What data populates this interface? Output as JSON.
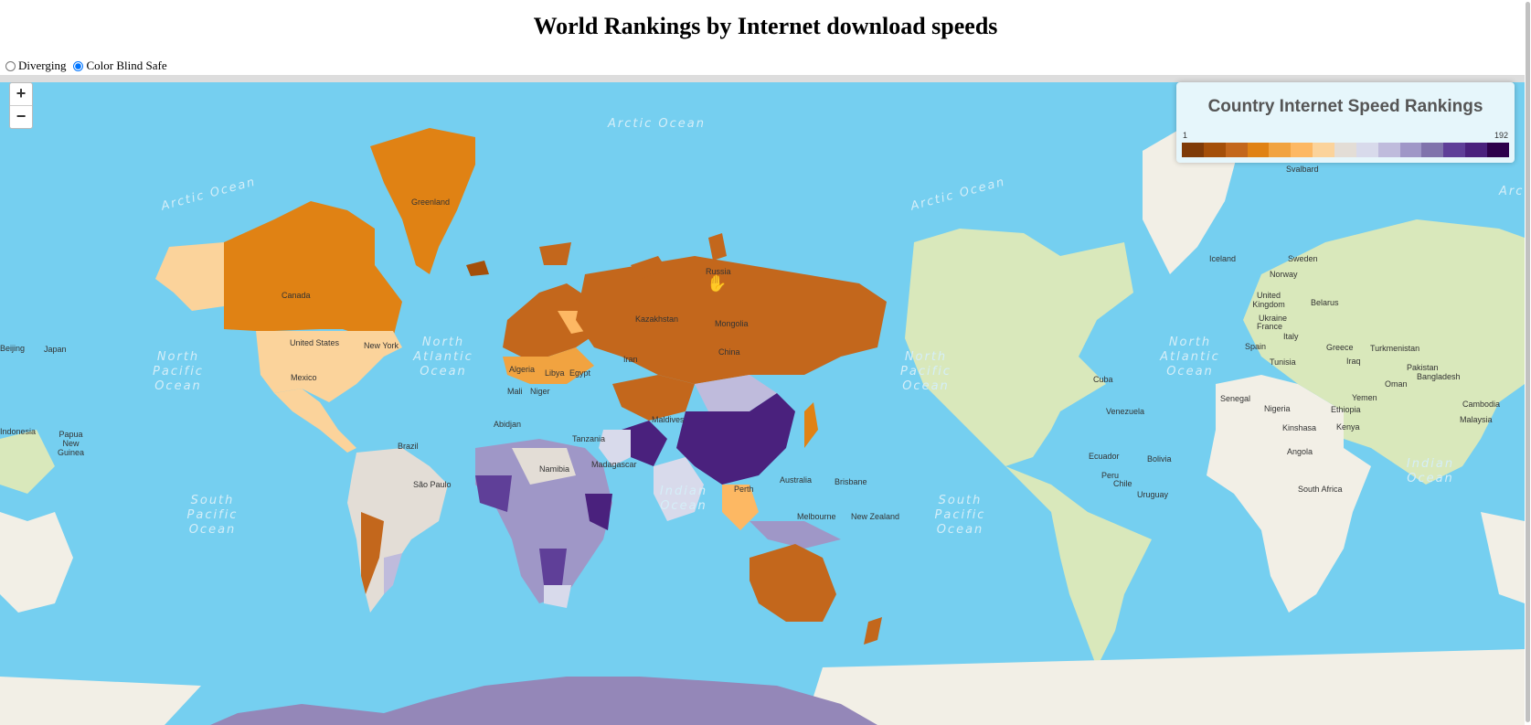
{
  "page": {
    "title": "World Rankings by Internet download speeds"
  },
  "color_mode": {
    "options": [
      {
        "label": "Diverging",
        "selected": false
      },
      {
        "label": "Color Blind Safe",
        "selected": true
      }
    ]
  },
  "zoom": {
    "in_label": "+",
    "out_label": "−"
  },
  "legend": {
    "title": "Country Internet Speed Rankings",
    "min_label": "1",
    "max_label": "192",
    "colors": [
      "#7f3b08",
      "#a44f09",
      "#c3671c",
      "#e08214",
      "#f1a340",
      "#fdb863",
      "#fbd39b",
      "#e3ddd6",
      "#d8daeb",
      "#bfbbdc",
      "#9f97c7",
      "#8073ac",
      "#5f3f98",
      "#4a217d",
      "#2d004b"
    ]
  },
  "colors": {
    "ocean": "#75cff0",
    "land_base": "#f2efe6",
    "land_green": "#d9e8bb",
    "antarctica": "#9487b8"
  },
  "map_labels": [
    {
      "text": "Arctic Ocean",
      "type": "ocean"
    },
    {
      "text": "Arctic Ocean",
      "type": "ocean"
    },
    {
      "text": "Arctic Ocean",
      "type": "ocean"
    },
    {
      "text": "Arctic Ocean",
      "type": "ocean"
    },
    {
      "text": "North Pacific Ocean",
      "type": "ocean"
    },
    {
      "text": "North Atlantic Ocean",
      "type": "ocean"
    },
    {
      "text": "North Pacific Ocean",
      "type": "ocean"
    },
    {
      "text": "North Atlantic Ocean",
      "type": "ocean"
    },
    {
      "text": "South Pacific Ocean",
      "type": "ocean"
    },
    {
      "text": "Indian Ocean",
      "type": "ocean"
    },
    {
      "text": "South Pacific Ocean",
      "type": "ocean"
    },
    {
      "text": "Indian Ocean",
      "type": "ocean"
    },
    {
      "text": "Greenland"
    },
    {
      "text": "Canada"
    },
    {
      "text": "United States"
    },
    {
      "text": "Mexico"
    },
    {
      "text": "New York"
    },
    {
      "text": "Russia"
    },
    {
      "text": "Kazakhstan"
    },
    {
      "text": "Mongolia"
    },
    {
      "text": "China"
    },
    {
      "text": "Japan"
    },
    {
      "text": "Iran"
    },
    {
      "text": "Algeria"
    },
    {
      "text": "Libya"
    },
    {
      "text": "Egypt"
    },
    {
      "text": "Mali"
    },
    {
      "text": "Niger"
    },
    {
      "text": "Abidjan"
    },
    {
      "text": "Tanzania"
    },
    {
      "text": "Namibia"
    },
    {
      "text": "Madagascar"
    },
    {
      "text": "Brazil"
    },
    {
      "text": "Bolivia"
    },
    {
      "text": "Chile"
    },
    {
      "text": "São Paulo"
    },
    {
      "text": "Uruguay"
    },
    {
      "text": "Australia"
    },
    {
      "text": "Perth"
    },
    {
      "text": "Brisbane"
    },
    {
      "text": "Melbourne"
    },
    {
      "text": "New Zealand"
    },
    {
      "text": "Maldives"
    },
    {
      "text": "Malaysia"
    },
    {
      "text": "Beijing"
    },
    {
      "text": "Indonesia"
    },
    {
      "text": "Papua New Guinea"
    },
    {
      "text": "Ukraine"
    },
    {
      "text": "Bangladesh"
    },
    {
      "text": "Svalbard"
    },
    {
      "text": "Iceland"
    },
    {
      "text": "Sweden"
    },
    {
      "text": "Norway"
    },
    {
      "text": "United Kingdom"
    },
    {
      "text": "Belarus"
    },
    {
      "text": "France"
    },
    {
      "text": "Spain"
    },
    {
      "text": "Italy"
    },
    {
      "text": "Greece"
    },
    {
      "text": "Turkmenistan"
    },
    {
      "text": "Tunisia"
    },
    {
      "text": "Iraq"
    },
    {
      "text": "Pakistan"
    },
    {
      "text": "Oman"
    },
    {
      "text": "Yemen"
    },
    {
      "text": "Senegal"
    },
    {
      "text": "Nigeria"
    },
    {
      "text": "Ethiopia"
    },
    {
      "text": "Kinshasa"
    },
    {
      "text": "Kenya"
    },
    {
      "text": "Angola"
    },
    {
      "text": "South Africa"
    },
    {
      "text": "Cambodia"
    },
    {
      "text": "Venezuela"
    },
    {
      "text": "Ecuador"
    },
    {
      "text": "Peru"
    },
    {
      "text": "Cuba"
    }
  ]
}
